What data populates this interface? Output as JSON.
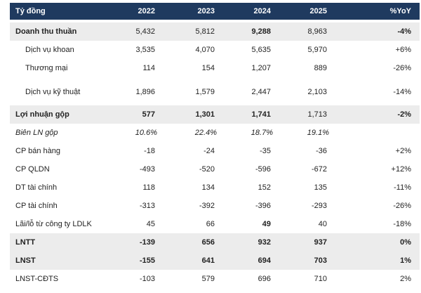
{
  "header": {
    "label": "Tỷ đồng",
    "y2022": "2022",
    "y2023": "2023",
    "y2024": "2024",
    "y2025": "2025",
    "yoy": "%YoY"
  },
  "rows": [
    {
      "label": "Doanh thu thuần",
      "v2022": "5,432",
      "v2023": "5,812",
      "v2024": "9,288",
      "v2025": "8,963",
      "yoy": "-4%"
    },
    {
      "label": "Dịch vụ khoan",
      "v2022": "3,535",
      "v2023": "4,070",
      "v2024": "5,635",
      "v2025": "5,970",
      "yoy": "+6%"
    },
    {
      "label": "Thương mại",
      "v2022": "114",
      "v2023": "154",
      "v2024": "1,207",
      "v2025": "889",
      "yoy": "-26%"
    },
    {
      "label": "Dịch vụ kỹ thuật",
      "v2022": "1,896",
      "v2023": "1,579",
      "v2024": "2,447",
      "v2025": "2,103",
      "yoy": "-14%"
    },
    {
      "label": "Lợi nhuận gộp",
      "v2022": "577",
      "v2023": "1,301",
      "v2024": "1,741",
      "v2025": "1,713",
      "yoy": "-2%"
    },
    {
      "label": "Biên LN gộp",
      "v2022": "10.6%",
      "v2023": "22.4%",
      "v2024": "18.7%",
      "v2025": "19.1%",
      "yoy": ""
    },
    {
      "label": "CP bán hàng",
      "v2022": "-18",
      "v2023": "-24",
      "v2024": "-35",
      "v2025": "-36",
      "yoy": "+2%"
    },
    {
      "label": "CP QLDN",
      "v2022": "-493",
      "v2023": "-520",
      "v2024": "-596",
      "v2025": "-672",
      "yoy": "+12%"
    },
    {
      "label": "DT tài chính",
      "v2022": "118",
      "v2023": "134",
      "v2024": "152",
      "v2025": "135",
      "yoy": "-11%"
    },
    {
      "label": "CP tài chính",
      "v2022": "-313",
      "v2023": "-392",
      "v2024": "-396",
      "v2025": "-293",
      "yoy": "-26%"
    },
    {
      "label": "Lãi/lỗ từ công ty LDLK",
      "v2022": "45",
      "v2023": "66",
      "v2024": "49",
      "v2025": "40",
      "yoy": "-18%"
    },
    {
      "label": "LNTT",
      "v2022": "-139",
      "v2023": "656",
      "v2024": "932",
      "v2025": "937",
      "yoy": "0%"
    },
    {
      "label": "LNST",
      "v2022": "-155",
      "v2023": "641",
      "v2024": "694",
      "v2025": "703",
      "yoy": "1%"
    },
    {
      "label": "LNST-CĐTS",
      "v2022": "-103",
      "v2023": "579",
      "v2024": "696",
      "v2025": "710",
      "yoy": "2%"
    }
  ],
  "colors": {
    "header_bg": "#1f3a5f",
    "header_text": "#ffffff",
    "shaded_row": "#ececec"
  }
}
